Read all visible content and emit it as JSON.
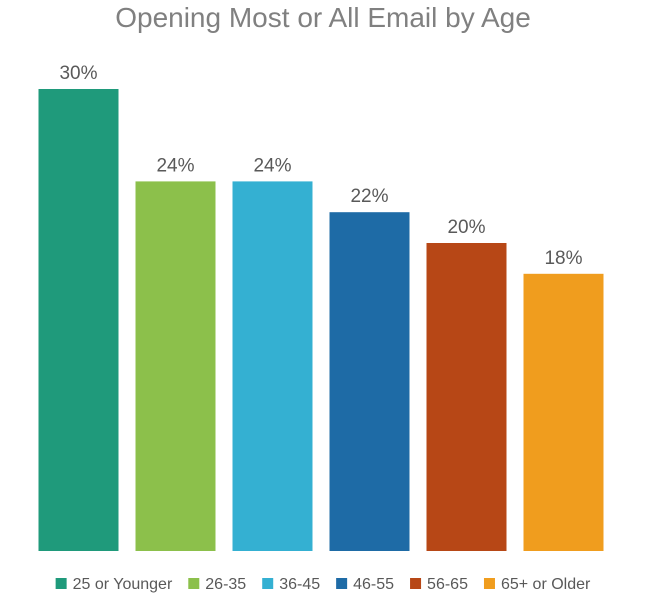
{
  "chart_data": {
    "type": "bar",
    "title": "Opening Most or All Email by Age",
    "xlabel": "",
    "ylabel": "",
    "ylim": [
      0,
      30
    ],
    "categories": [
      "25 or Younger",
      "26-35",
      "36-45",
      "46-55",
      "56-65",
      "65+ or Older"
    ],
    "values": [
      30,
      24,
      24,
      22,
      20,
      18
    ],
    "value_labels": [
      "30%",
      "24%",
      "24%",
      "22%",
      "20%",
      "18%"
    ],
    "colors": [
      "#1f9a7b",
      "#8cc04b",
      "#34b0d2",
      "#1e6ba6",
      "#b74716",
      "#f09d1e"
    ],
    "grid": false,
    "legend": "bottom"
  }
}
